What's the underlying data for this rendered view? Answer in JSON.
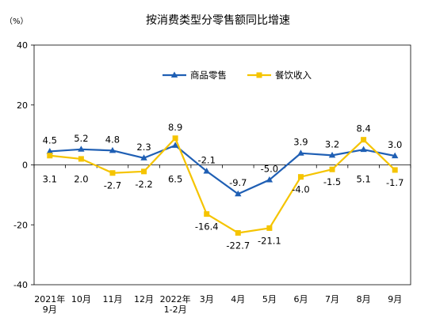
{
  "chart_data": {
    "type": "line",
    "title": "按消费类型分零售额同比增速",
    "y_unit_label": "（%）",
    "ylim": [
      -40,
      40
    ],
    "y_ticks": [
      40,
      20,
      0,
      -20,
      -40
    ],
    "categories": [
      [
        "2021年",
        "9月"
      ],
      [
        "10月"
      ],
      [
        "11月"
      ],
      [
        "12月"
      ],
      [
        "2022年",
        "1-2月"
      ],
      [
        "3月"
      ],
      [
        "4月"
      ],
      [
        "5月"
      ],
      [
        "6月"
      ],
      [
        "7月"
      ],
      [
        "8月"
      ],
      [
        "9月"
      ]
    ],
    "series": [
      {
        "name": "商品零售",
        "color": "#1f5fb4",
        "marker": "triangle",
        "values": [
          4.5,
          5.2,
          4.8,
          2.3,
          6.5,
          -2.1,
          -9.7,
          -5.0,
          3.9,
          3.2,
          5.1,
          3.0
        ],
        "labels": [
          "4.5",
          "5.2",
          "4.8",
          "2.3",
          "6.5",
          "-2.1",
          "-9.7",
          "-5.0",
          "3.9",
          "3.2",
          "5.1",
          "3.0"
        ]
      },
      {
        "name": "餐饮收入",
        "color": "#f5c400",
        "marker": "square",
        "values": [
          3.1,
          2.0,
          -2.7,
          -2.2,
          8.9,
          -16.4,
          -22.7,
          -21.1,
          -4.0,
          -1.5,
          8.4,
          -1.7
        ],
        "labels": [
          "3.1",
          "2.0",
          "-2.7",
          "-2.2",
          "8.9",
          "-16.4",
          "-22.7",
          "-21.1",
          "-4.0",
          "-1.5",
          "8.4",
          "-1.7"
        ]
      }
    ],
    "legend_position": "top-center",
    "grid": false
  }
}
